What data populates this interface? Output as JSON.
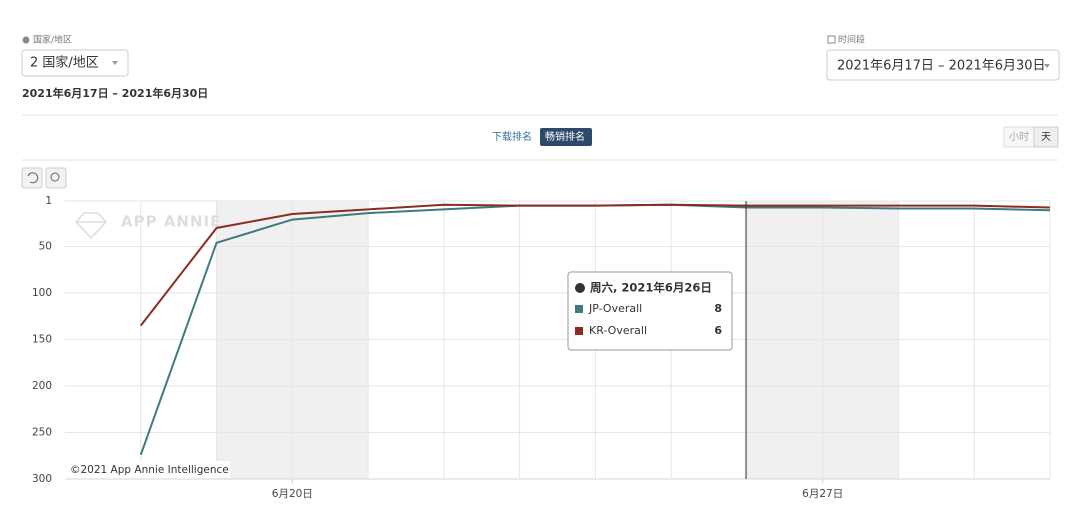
{
  "ui": {
    "country_label": "国家/地区",
    "country_select": "2 国家/地区",
    "date_range": "2021年6月17日 – 2021年6月30日",
    "period_label": "时间段",
    "period_select": "2021年6月17日 – 2021年6月30日",
    "tabs": [
      "下载排名",
      "畅销排名"
    ],
    "granularity": [
      "小时",
      "天"
    ]
  },
  "chart_data": {
    "type": "line",
    "watermark": "APP ANNIE",
    "credit": "©2021 App Annie Intelligence",
    "x": [
      18,
      19,
      20,
      21,
      22,
      23,
      24,
      25,
      26,
      27,
      28,
      29,
      30
    ],
    "xlim": [
      17,
      30
    ],
    "xticks": [
      {
        "value": 20,
        "label": "6月20日"
      },
      {
        "value": 27,
        "label": "6月27日"
      }
    ],
    "ylim": [
      300,
      1
    ],
    "yticks": [
      1,
      50,
      100,
      150,
      200,
      250,
      300
    ],
    "grid": true,
    "series": [
      {
        "name": "JP-Overall",
        "color": "#3e7a80",
        "values": [
          274,
          46,
          21,
          14,
          10,
          6,
          6,
          5,
          8,
          8,
          9,
          9,
          11
        ]
      },
      {
        "name": "KR-Overall",
        "color": "#8b2e20",
        "values": [
          135,
          30,
          15,
          10,
          5,
          6,
          6,
          5,
          6,
          6,
          6,
          6,
          8
        ]
      }
    ],
    "tooltip": {
      "title": "周六, 2021年6月26日"
    }
  }
}
